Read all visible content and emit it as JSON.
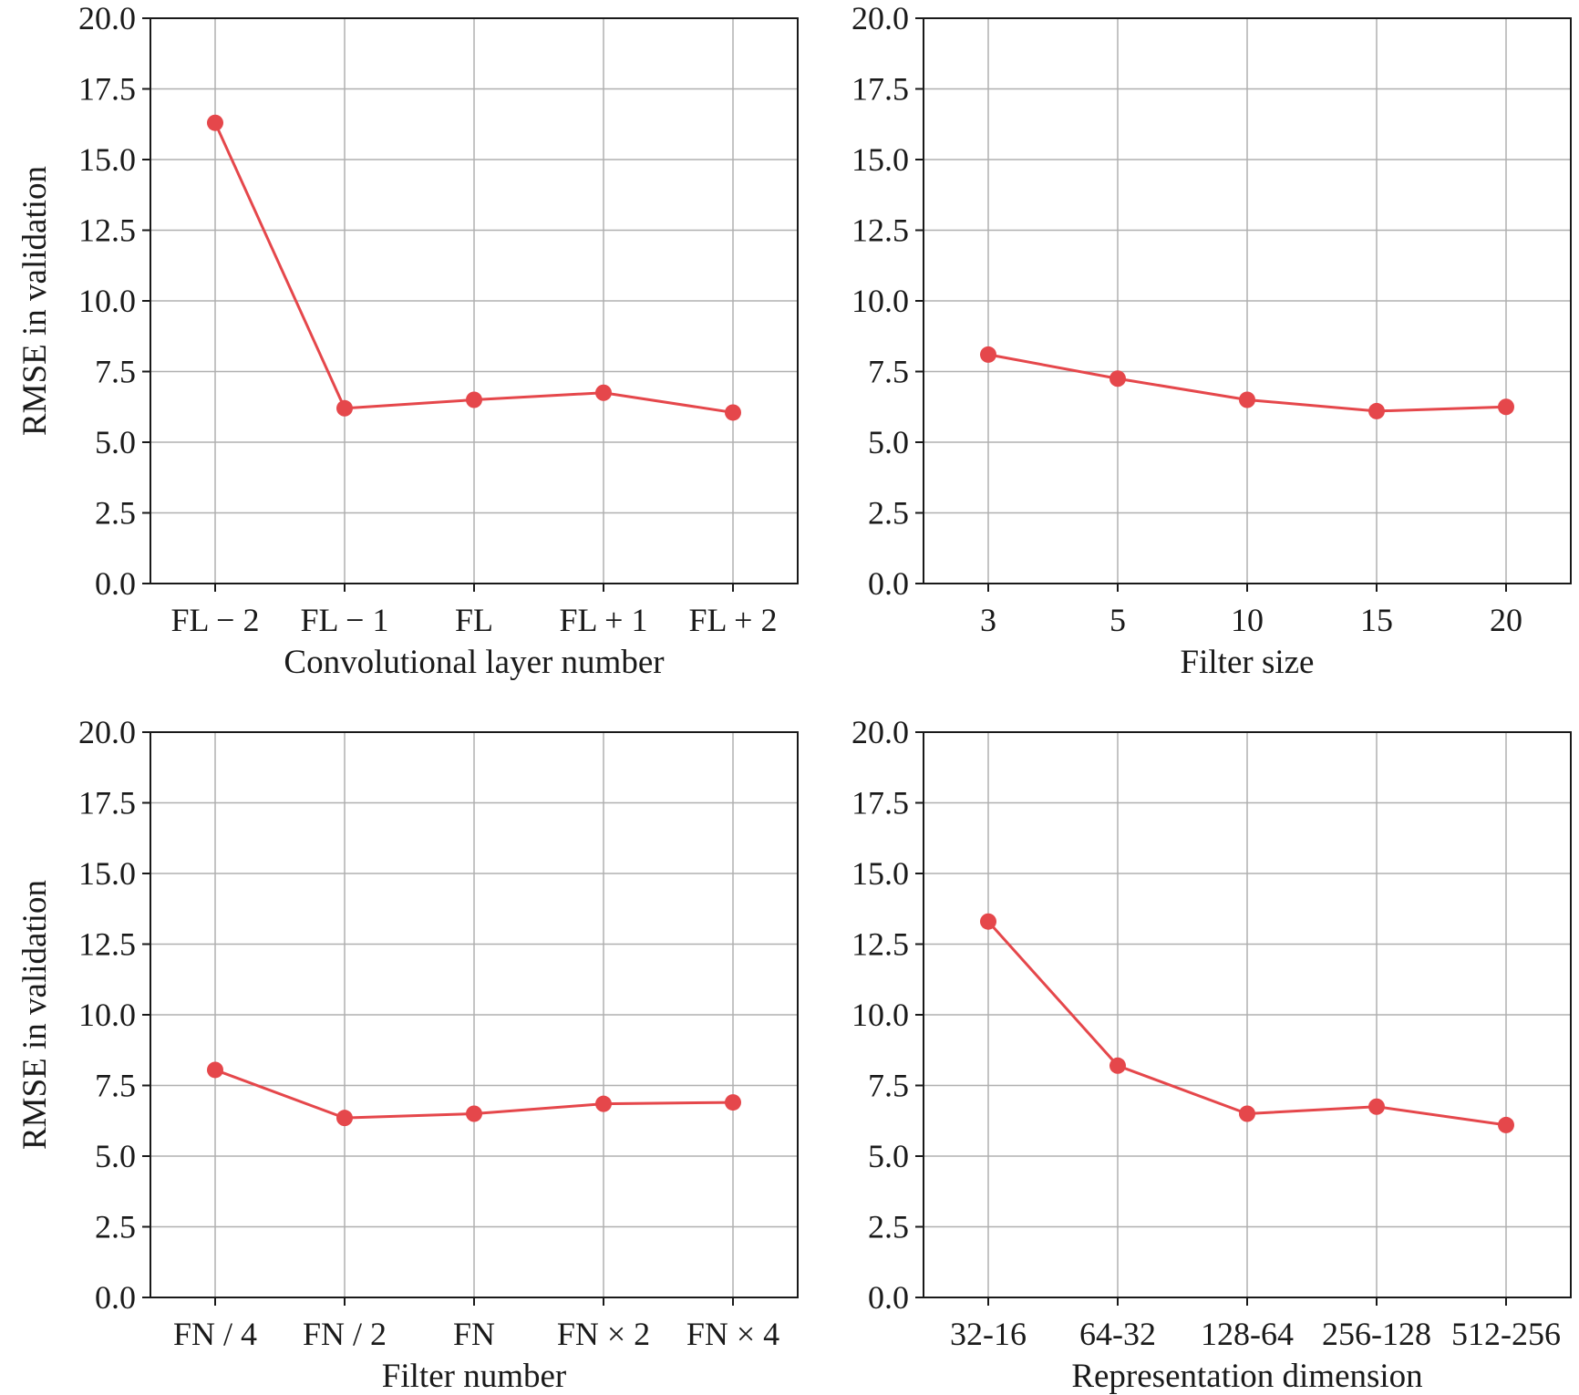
{
  "colors": {
    "series": "#e5474b"
  },
  "chart_data": [
    {
      "type": "line",
      "categories": [
        "FL − 2",
        "FL − 1",
        "FL",
        "FL + 1",
        "FL + 2"
      ],
      "values": [
        16.3,
        6.2,
        6.5,
        6.75,
        6.05
      ],
      "xlabel": "Convolutional layer number",
      "ylabel": "RMSE in validation",
      "ylim": [
        0,
        20
      ],
      "yticks": [
        "0.0",
        "2.5",
        "5.0",
        "7.5",
        "10.0",
        "12.5",
        "15.0",
        "17.5",
        "20.0"
      ],
      "grid": true
    },
    {
      "type": "line",
      "categories": [
        "3",
        "5",
        "10",
        "15",
        "20"
      ],
      "values": [
        8.1,
        7.25,
        6.5,
        6.1,
        6.25
      ],
      "xlabel": "Filter size",
      "ylabel": "",
      "ylim": [
        0,
        20
      ],
      "yticks": [
        "0.0",
        "2.5",
        "5.0",
        "7.5",
        "10.0",
        "12.5",
        "15.0",
        "17.5",
        "20.0"
      ],
      "grid": true
    },
    {
      "type": "line",
      "categories": [
        "FN / 4",
        "FN / 2",
        "FN",
        "FN × 2",
        "FN × 4"
      ],
      "values": [
        8.05,
        6.35,
        6.5,
        6.85,
        6.9
      ],
      "xlabel": "Filter number",
      "ylabel": "RMSE in validation",
      "ylim": [
        0,
        20
      ],
      "yticks": [
        "0.0",
        "2.5",
        "5.0",
        "7.5",
        "10.0",
        "12.5",
        "15.0",
        "17.5",
        "20.0"
      ],
      "grid": true
    },
    {
      "type": "line",
      "categories": [
        "32-16",
        "64-32",
        "128-64",
        "256-128",
        "512-256"
      ],
      "values": [
        13.3,
        8.2,
        6.5,
        6.75,
        6.1
      ],
      "xlabel": "Representation dimension",
      "ylabel": "",
      "ylim": [
        0,
        20
      ],
      "yticks": [
        "0.0",
        "2.5",
        "5.0",
        "7.5",
        "10.0",
        "12.5",
        "15.0",
        "17.5",
        "20.0"
      ],
      "grid": true
    }
  ]
}
